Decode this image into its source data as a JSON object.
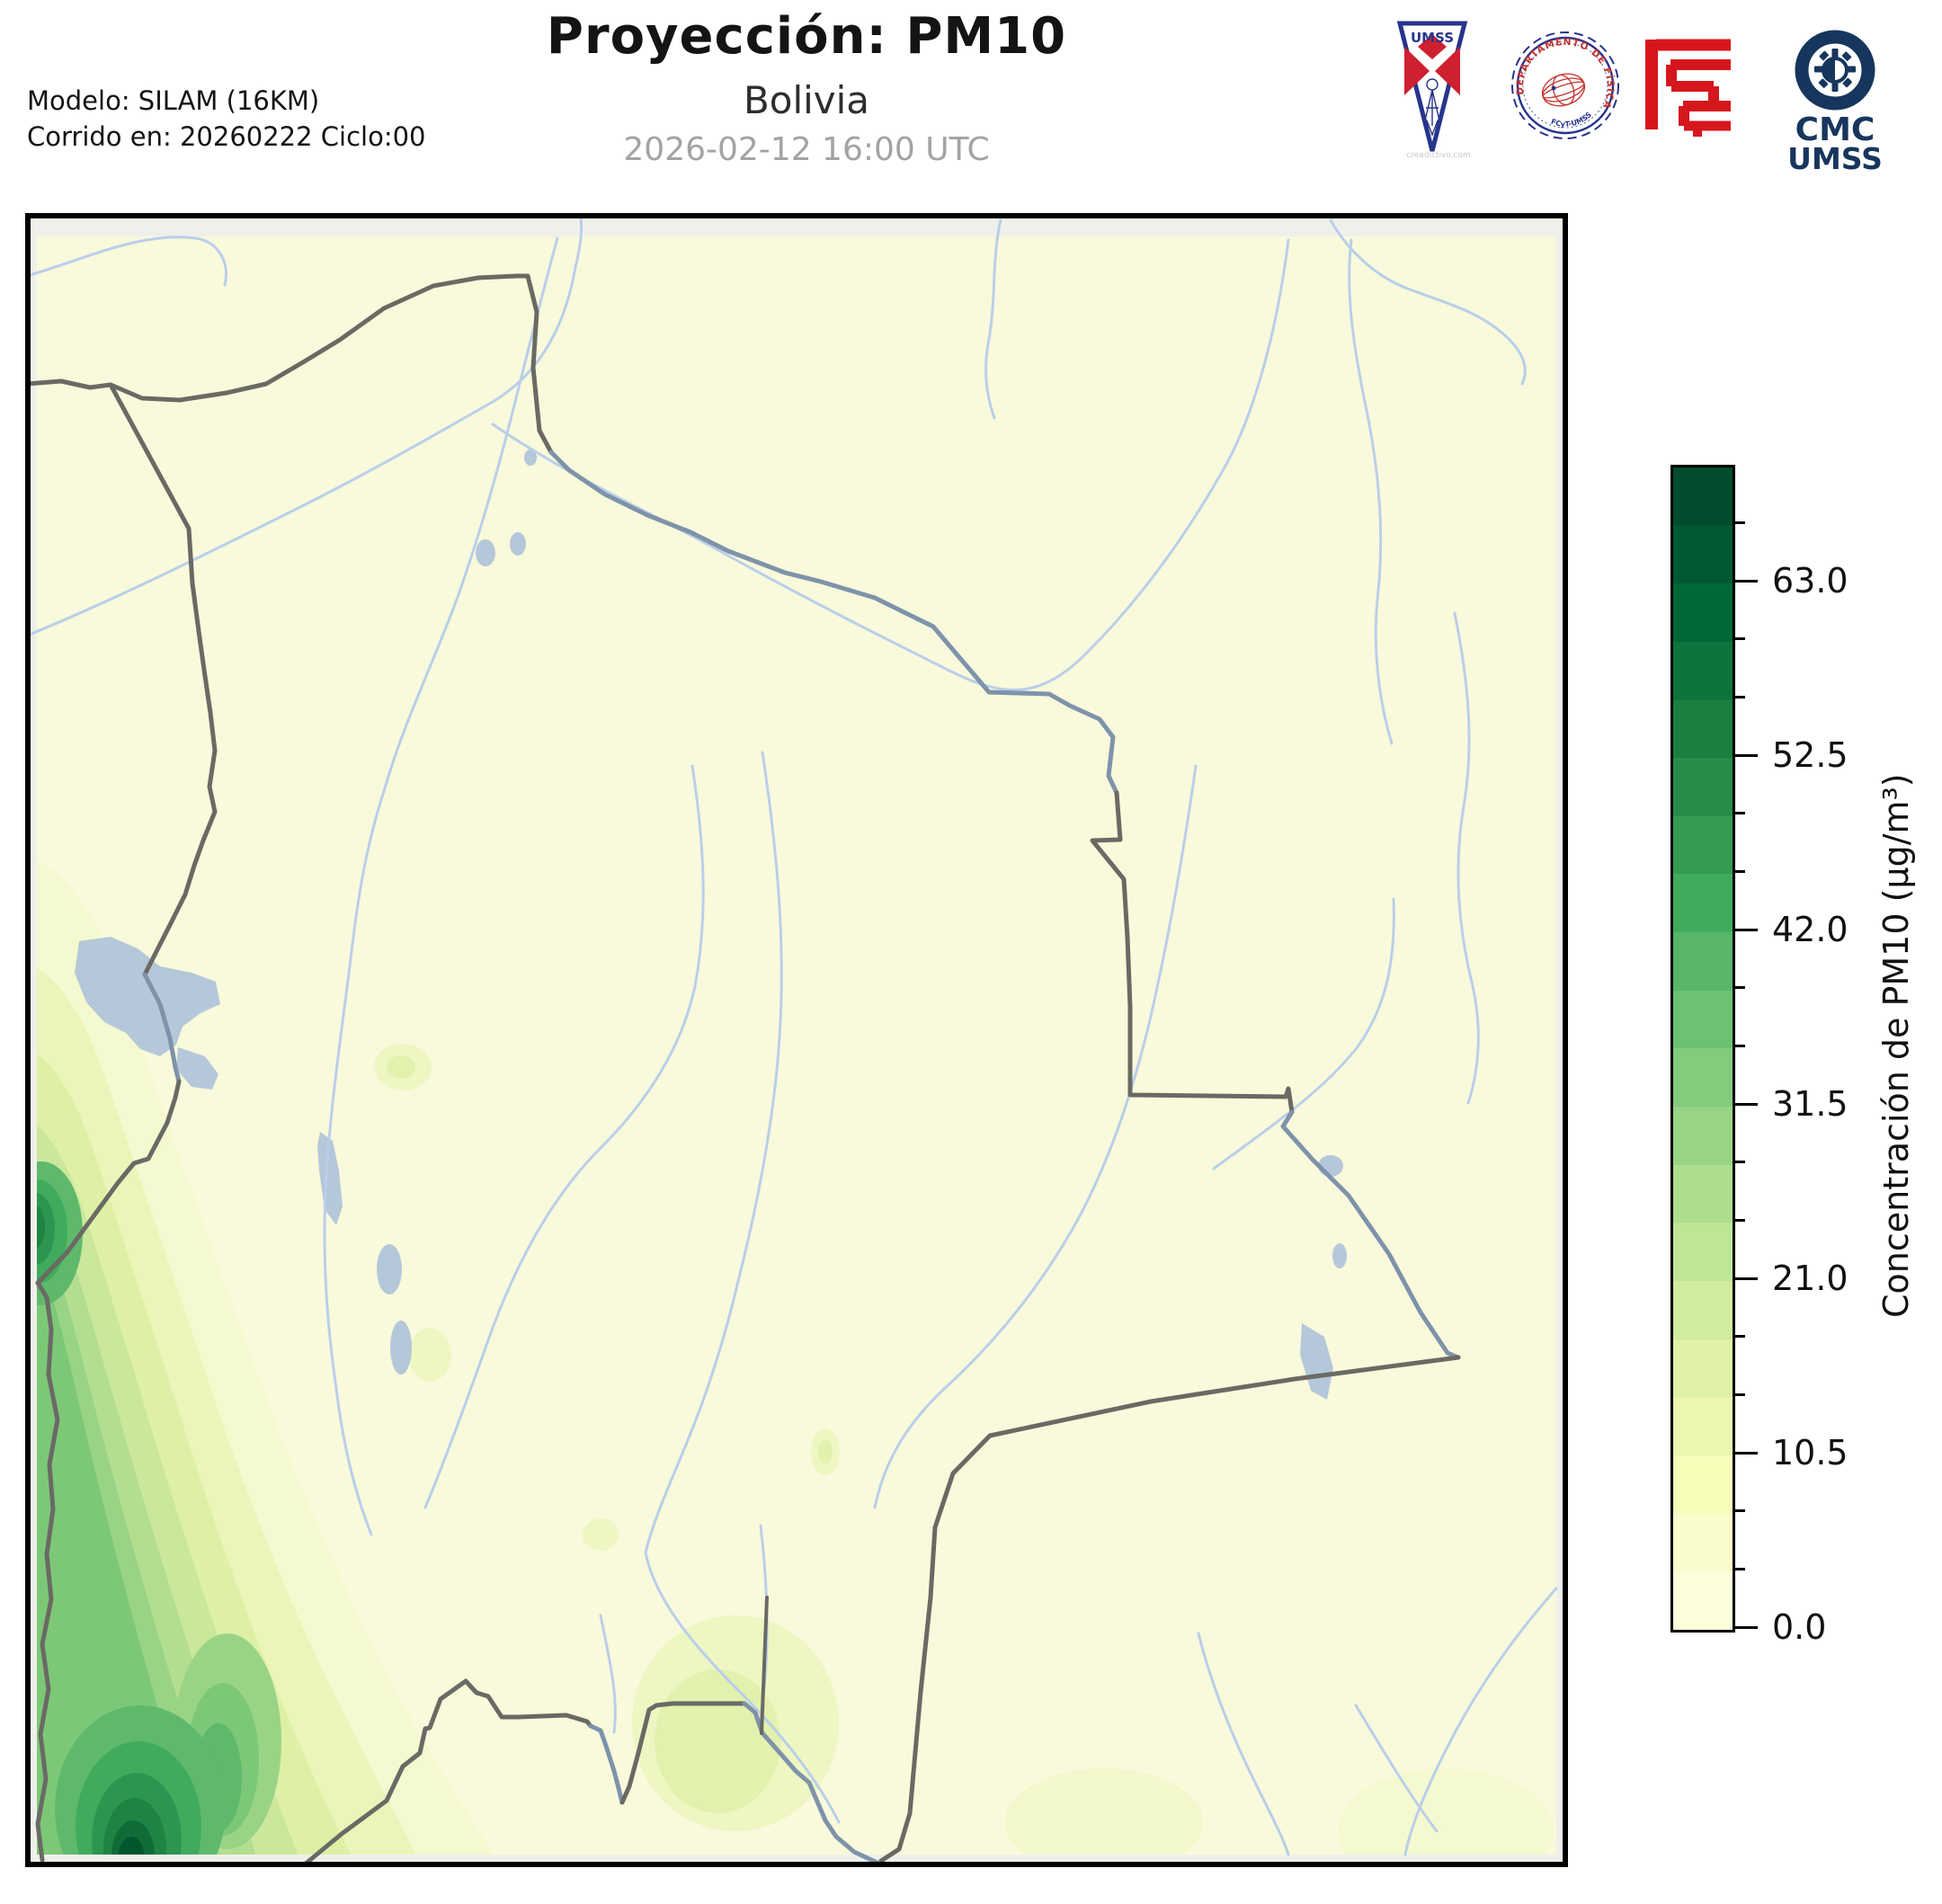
{
  "header": {
    "title": "Proyección: PM10",
    "subtitle": "Bolivia",
    "datetime": "2026-02-12 16:00 UTC",
    "model_line1": "Modelo: SILAM (16KM)",
    "model_line2": "Corrido en: 20260222 Ciclo:00"
  },
  "logos": {
    "umss_pennant_text": "UMSS",
    "umss_watermark": "creadictivo.com",
    "fisica_seal_text_top": "DEPARTAMENTO DE FÍSICA",
    "fisica_seal_text_bottom": "FCyT-UMSS",
    "cmc_line1": "CMC",
    "cmc_line2": "UMSS"
  },
  "colorbar": {
    "label": "Concentración de PM10 (µg/m³)",
    "vmin": 0,
    "vmax": 70,
    "segment_step": 3.5,
    "major_ticks": [
      0.0,
      10.5,
      21.0,
      31.5,
      42.0,
      52.5,
      63.0
    ],
    "major_tick_labels": [
      "0.0",
      "10.5",
      "21.0",
      "31.5",
      "42.0",
      "52.5",
      "63.0"
    ],
    "segment_colors_bottom_to_top": [
      "#fdfedc",
      "#fafdcb",
      "#f7fcb9",
      "#ebf7b0",
      "#dff2a7",
      "#d0ec9f",
      "#bfe596",
      "#addd8e",
      "#98d486",
      "#83cb7d",
      "#6dc173",
      "#57b668",
      "#41ab5d",
      "#359b53",
      "#298c48",
      "#1c7e41",
      "#0e733c",
      "#006837",
      "#005a31",
      "#004c2c"
    ]
  },
  "map": {
    "region": "Bolivia",
    "colors": {
      "background": "#f9f9dc",
      "out_of_domain": "#f0f0eb",
      "country_border": "#6a6a64",
      "river_border": "#7e93aa",
      "rivers": "#b9cfe9",
      "lakes": "#b5c8d9",
      "frame": "#000000"
    }
  },
  "chart_data": {
    "type": "heatmap",
    "title": "Proyección: PM10 — Bolivia",
    "timestamp": "2026-02-12 16:00 UTC",
    "colorbar_label": "Concentración de PM10 (µg/m³)",
    "scale_min": 0.0,
    "scale_max": 70.0,
    "contour_interval": 3.5,
    "labeled_levels": [
      0.0,
      10.5,
      21.0,
      31.5,
      42.0,
      52.5,
      63.0
    ],
    "legend_position": "right",
    "colormap": "YlGn",
    "reading": "PM10 concentrations are near 0–10 µg/m³ over most of lowland Bolivia; contour bands of 15–70 µg/m³ run along the southwestern Andes and Chile border, with maxima (~60–70 µg/m³) at the far southwest corner and a secondary hotspot on the western edge near 17.5°S."
  }
}
